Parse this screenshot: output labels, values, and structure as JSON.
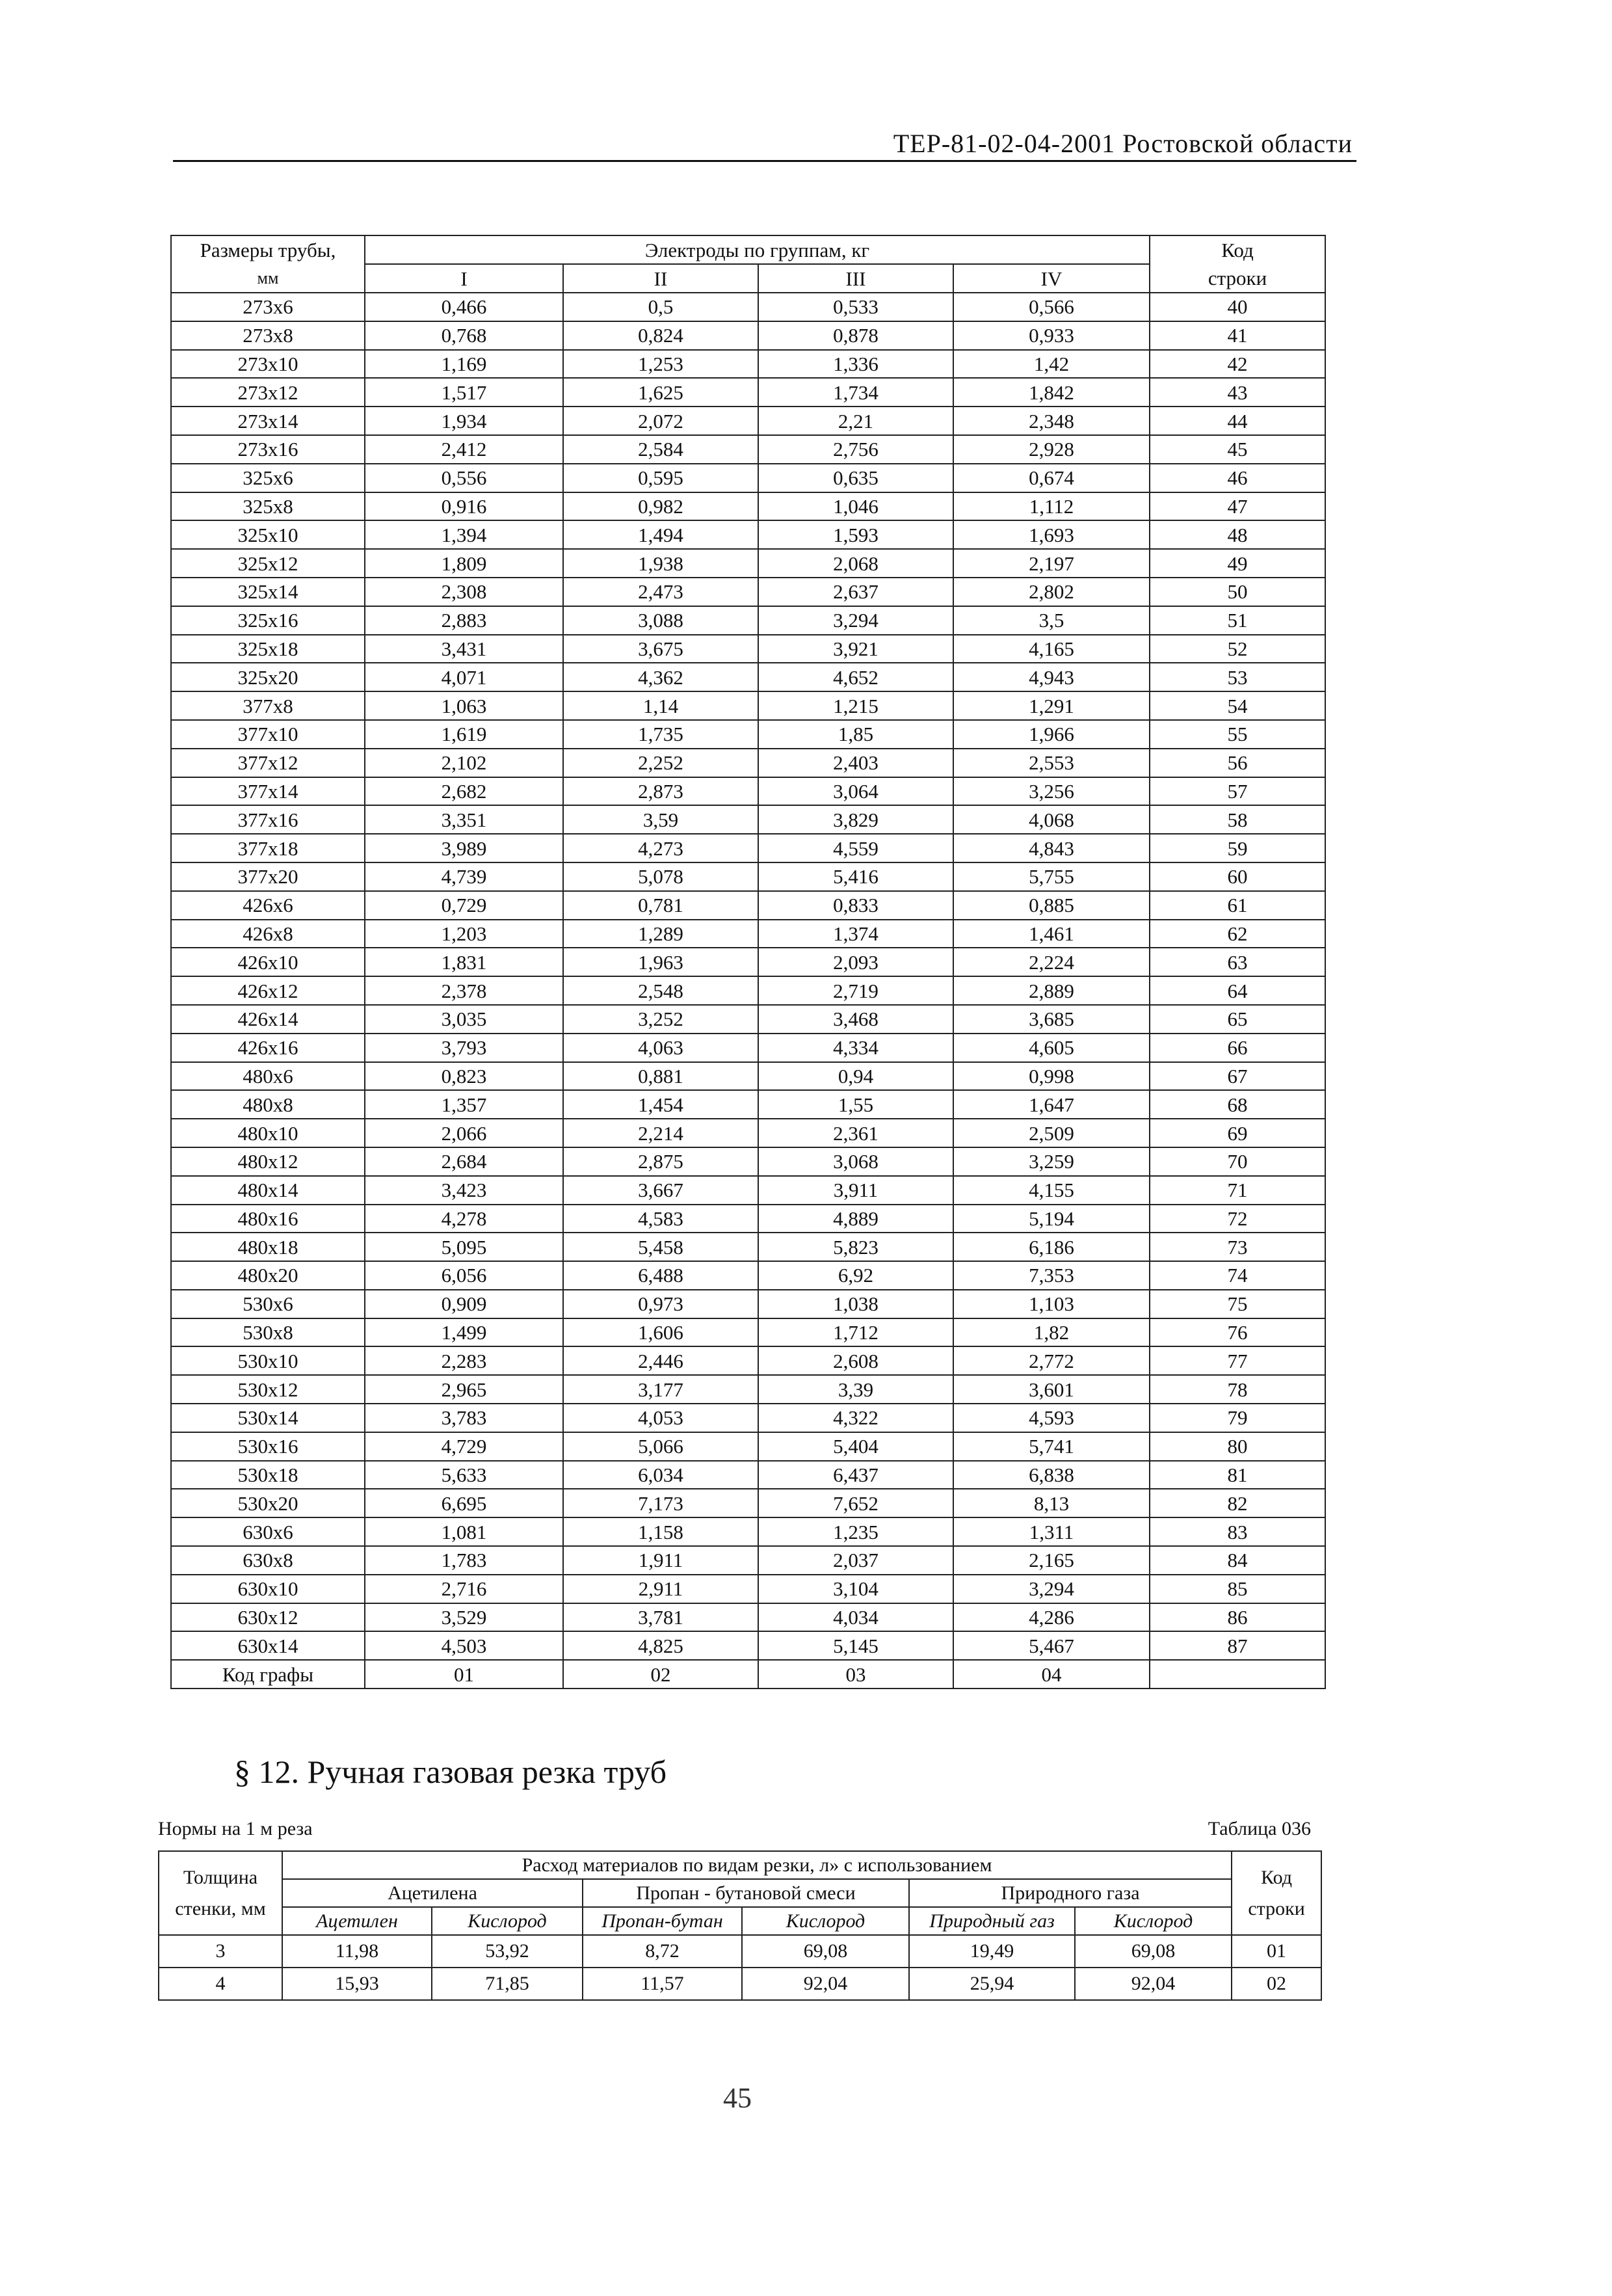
{
  "header": {
    "title": "ТЕР-81-02-04-2001 Ростовской области"
  },
  "table1": {
    "col_size": "Размеры трубы,",
    "col_size_unit": "мм",
    "col_group": "Электроды по группам, кг",
    "groups": [
      "I",
      "II",
      "III",
      "IV"
    ],
    "col_code": "Код",
    "col_code2": "строки",
    "rows": [
      [
        "273x6",
        "0,466",
        "0,5",
        "0,533",
        "0,566",
        "40"
      ],
      [
        "273x8",
        "0,768",
        "0,824",
        "0,878",
        "0,933",
        "41"
      ],
      [
        "273x10",
        "1,169",
        "1,253",
        "1,336",
        "1,42",
        "42"
      ],
      [
        "273x12",
        "1,517",
        "1,625",
        "1,734",
        "1,842",
        "43"
      ],
      [
        "273x14",
        "1,934",
        "2,072",
        "2,21",
        "2,348",
        "44"
      ],
      [
        "273x16",
        "2,412",
        "2,584",
        "2,756",
        "2,928",
        "45"
      ],
      [
        "325x6",
        "0,556",
        "0,595",
        "0,635",
        "0,674",
        "46"
      ],
      [
        "325x8",
        "0,916",
        "0,982",
        "1,046",
        "1,112",
        "47"
      ],
      [
        "325x10",
        "1,394",
        "1,494",
        "1,593",
        "1,693",
        "48"
      ],
      [
        "325x12",
        "1,809",
        "1,938",
        "2,068",
        "2,197",
        "49"
      ],
      [
        "325x14",
        "2,308",
        "2,473",
        "2,637",
        "2,802",
        "50"
      ],
      [
        "325x16",
        "2,883",
        "3,088",
        "3,294",
        "3,5",
        "51"
      ],
      [
        "325x18",
        "3,431",
        "3,675",
        "3,921",
        "4,165",
        "52"
      ],
      [
        "325x20",
        "4,071",
        "4,362",
        "4,652",
        "4,943",
        "53"
      ],
      [
        "377x8",
        "1,063",
        "1,14",
        "1,215",
        "1,291",
        "54"
      ],
      [
        "377x10",
        "1,619",
        "1,735",
        "1,85",
        "1,966",
        "55"
      ],
      [
        "377x12",
        "2,102",
        "2,252",
        "2,403",
        "2,553",
        "56"
      ],
      [
        "377x14",
        "2,682",
        "2,873",
        "3,064",
        "3,256",
        "57"
      ],
      [
        "377x16",
        "3,351",
        "3,59",
        "3,829",
        "4,068",
        "58"
      ],
      [
        "377x18",
        "3,989",
        "4,273",
        "4,559",
        "4,843",
        "59"
      ],
      [
        "377x20",
        "4,739",
        "5,078",
        "5,416",
        "5,755",
        "60"
      ],
      [
        "426x6",
        "0,729",
        "0,781",
        "0,833",
        "0,885",
        "61"
      ],
      [
        "426x8",
        "1,203",
        "1,289",
        "1,374",
        "1,461",
        "62"
      ],
      [
        "426x10",
        "1,831",
        "1,963",
        "2,093",
        "2,224",
        "63"
      ],
      [
        "426x12",
        "2,378",
        "2,548",
        "2,719",
        "2,889",
        "64"
      ],
      [
        "426x14",
        "3,035",
        "3,252",
        "3,468",
        "3,685",
        "65"
      ],
      [
        "426x16",
        "3,793",
        "4,063",
        "4,334",
        "4,605",
        "66"
      ],
      [
        "480x6",
        "0,823",
        "0,881",
        "0,94",
        "0,998",
        "67"
      ],
      [
        "480x8",
        "1,357",
        "1,454",
        "1,55",
        "1,647",
        "68"
      ],
      [
        "480x10",
        "2,066",
        "2,214",
        "2,361",
        "2,509",
        "69"
      ],
      [
        "480x12",
        "2,684",
        "2,875",
        "3,068",
        "3,259",
        "70"
      ],
      [
        "480x14",
        "3,423",
        "3,667",
        "3,911",
        "4,155",
        "71"
      ],
      [
        "480x16",
        "4,278",
        "4,583",
        "4,889",
        "5,194",
        "72"
      ],
      [
        "480x18",
        "5,095",
        "5,458",
        "5,823",
        "6,186",
        "73"
      ],
      [
        "480x20",
        "6,056",
        "6,488",
        "6,92",
        "7,353",
        "74"
      ],
      [
        "530x6",
        "0,909",
        "0,973",
        "1,038",
        "1,103",
        "75"
      ],
      [
        "530x8",
        "1,499",
        "1,606",
        "1,712",
        "1,82",
        "76"
      ],
      [
        "530x10",
        "2,283",
        "2,446",
        "2,608",
        "2,772",
        "77"
      ],
      [
        "530x12",
        "2,965",
        "3,177",
        "3,39",
        "3,601",
        "78"
      ],
      [
        "530x14",
        "3,783",
        "4,053",
        "4,322",
        "4,593",
        "79"
      ],
      [
        "530x16",
        "4,729",
        "5,066",
        "5,404",
        "5,741",
        "80"
      ],
      [
        "530x18",
        "5,633",
        "6,034",
        "6,437",
        "6,838",
        "81"
      ],
      [
        "530x20",
        "6,695",
        "7,173",
        "7,652",
        "8,13",
        "82"
      ],
      [
        "630x6",
        "1,081",
        "1,158",
        "1,235",
        "1,311",
        "83"
      ],
      [
        "630x8",
        "1,783",
        "1,911",
        "2,037",
        "2,165",
        "84"
      ],
      [
        "630x10",
        "2,716",
        "2,911",
        "3,104",
        "3,294",
        "85"
      ],
      [
        "630x12",
        "3,529",
        "3,781",
        "4,034",
        "4,286",
        "86"
      ],
      [
        "630x14",
        "4,503",
        "4,825",
        "5,145",
        "5,467",
        "87"
      ]
    ],
    "footer": [
      "Код графы",
      "01",
      "02",
      "03",
      "04",
      ""
    ]
  },
  "section": {
    "title": "§ 12. Ручная газовая резка труб"
  },
  "table2": {
    "norm_label": "Нормы на 1 м реза",
    "table_label": "Таблица 036",
    "col_thickness": "Толщина",
    "col_thickness2": "стенки, мм",
    "col_consumption": "Расход материалов по видам резки, л» с использованием",
    "groups": [
      "Ацетилена",
      "Пропан - бутановой смеси",
      "Природного газа"
    ],
    "subcols": [
      "Ацетилен",
      "Кислород",
      "Пропан-бутан",
      "Кислород",
      "Природный газ",
      "Кислород"
    ],
    "col_code": "Код",
    "col_code2": "строки",
    "rows": [
      [
        "3",
        "11,98",
        "53,92",
        "8,72",
        "69,08",
        "19,49",
        "69,08",
        "01"
      ],
      [
        "4",
        "15,93",
        "71,85",
        "11,57",
        "92,04",
        "25,94",
        "92,04",
        "02"
      ]
    ]
  },
  "page_number": "45"
}
